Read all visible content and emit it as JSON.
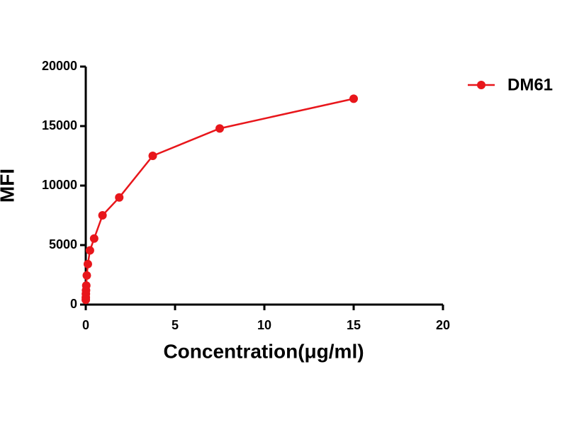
{
  "chart_data": {
    "type": "line",
    "x_label": "Concentration(μg/ml)",
    "y_label": "MFI",
    "x": [
      15,
      7.5,
      3.75,
      1.875,
      0.9375,
      0.46875,
      0.234375,
      0.1171875,
      0.05859375,
      0.029296875,
      0.0146484375,
      0.00732421875,
      0.003662109375,
      0.0018310546875
    ],
    "series": [
      {
        "name": "DM61",
        "color": "#e8161b",
        "values": [
          17300,
          14800,
          12500,
          9000,
          7500,
          5550,
          4550,
          3400,
          2450,
          1600,
          1200,
          900,
          600,
          400
        ]
      }
    ],
    "xlim": [
      0,
      20
    ],
    "xticks": [
      0,
      5,
      10,
      15,
      20
    ],
    "ylim": [
      0,
      20000
    ],
    "yticks": [
      0,
      5000,
      10000,
      15000,
      20000
    ],
    "legend": "top-right"
  }
}
